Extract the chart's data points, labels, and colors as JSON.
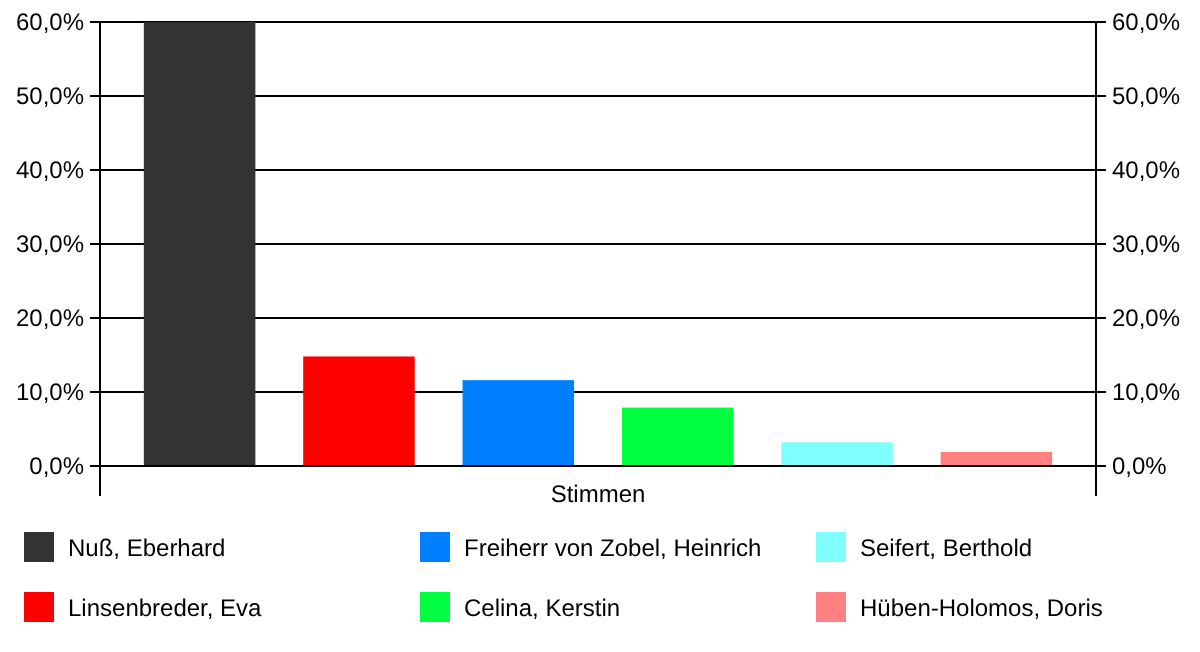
{
  "chart_data": {
    "type": "bar",
    "categories": [
      "Stimmen"
    ],
    "series": [
      {
        "name": "Nuß, Eberhard",
        "color": "#333333",
        "values": [
          60
        ]
      },
      {
        "name": "Linsenbreder, Eva",
        "color": "#ff0000",
        "values": [
          14.8
        ]
      },
      {
        "name": "Freiherr von Zobel, Heinrich",
        "color": "#0080ff",
        "values": [
          11.6
        ]
      },
      {
        "name": "Celina, Kerstin",
        "color": "#00ff40",
        "values": [
          7.9
        ]
      },
      {
        "name": "Seifert, Berthold",
        "color": "#80ffff",
        "values": [
          3.2
        ]
      },
      {
        "name": "Hüben-Holomos, Doris",
        "color": "#ff8080",
        "values": [
          1.9
        ]
      }
    ],
    "ylim": [
      0,
      60
    ],
    "yticks": [
      {
        "value": 0,
        "label": "0,0%"
      },
      {
        "value": 10,
        "label": "10,0%"
      },
      {
        "value": 20,
        "label": "20,0%"
      },
      {
        "value": 30,
        "label": "30,0%"
      },
      {
        "value": 40,
        "label": "40,0%"
      },
      {
        "value": 50,
        "label": "50,0%"
      },
      {
        "value": 60,
        "label": "60,0%"
      }
    ],
    "grid": "y",
    "legend": "bottom"
  }
}
